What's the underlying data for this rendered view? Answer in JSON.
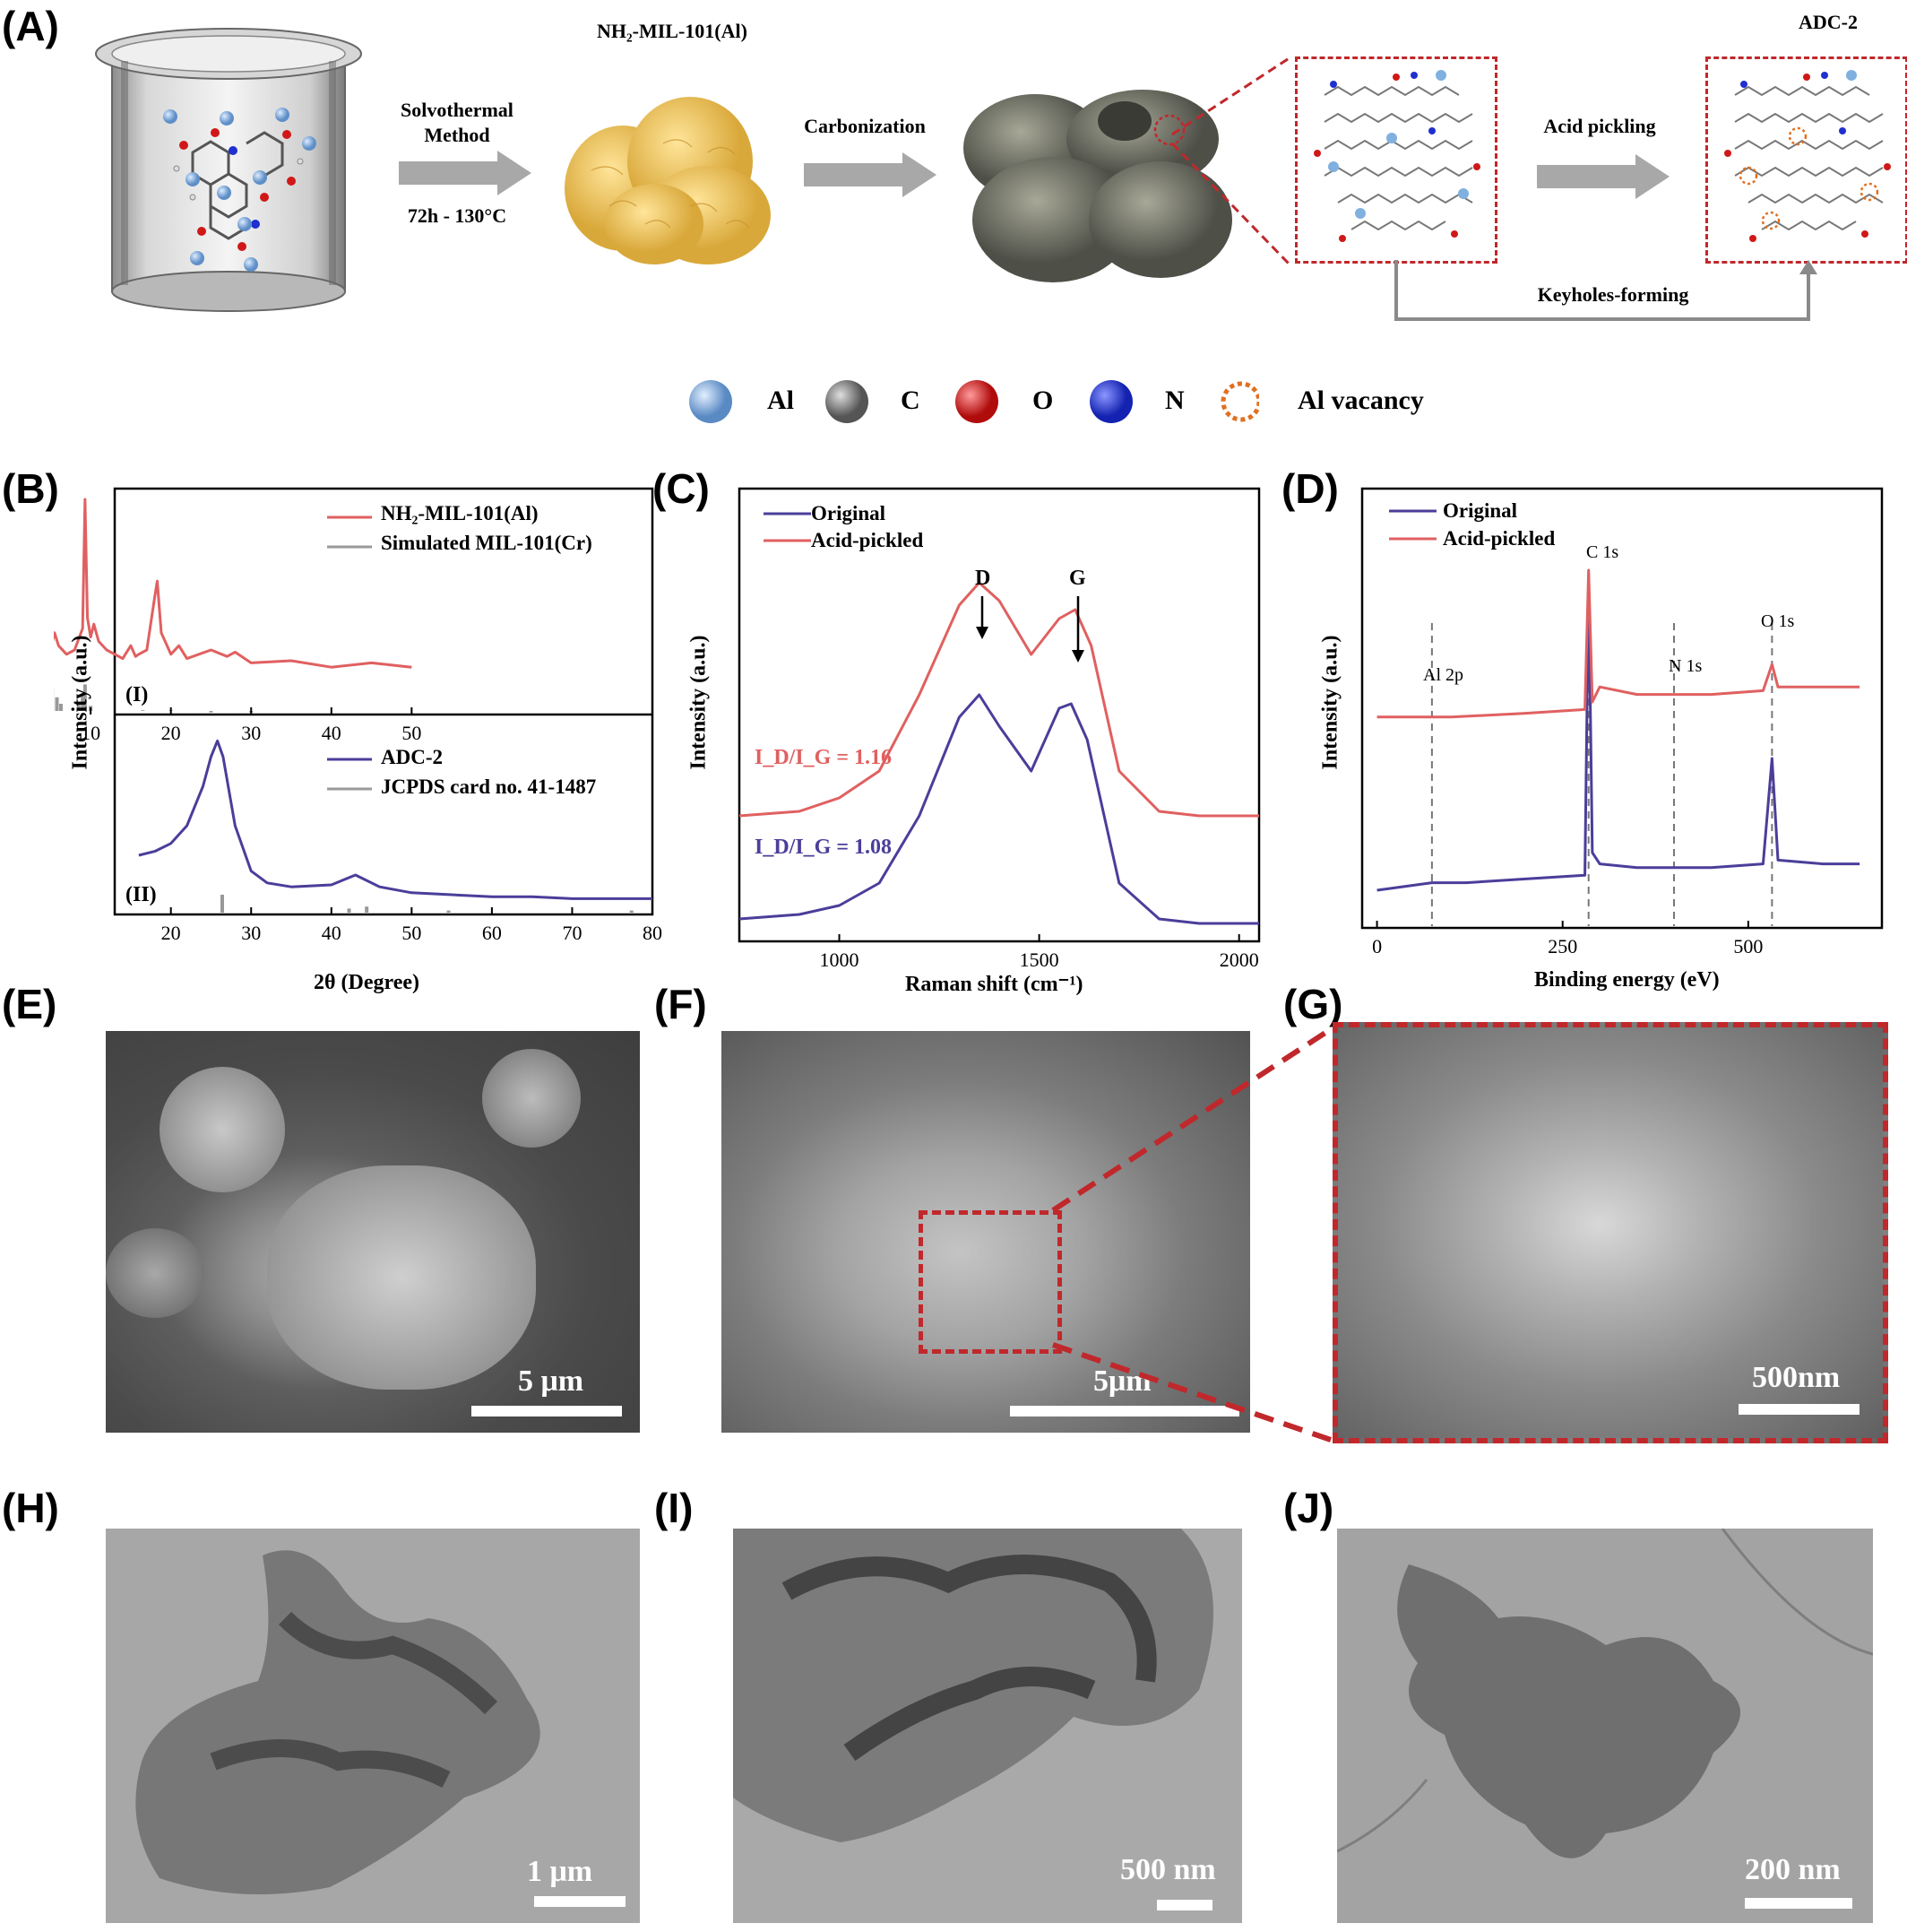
{
  "panels": {
    "A": {
      "label": "(A)",
      "title_mof": "NH₂-MIL-101(Al)",
      "title_adc": "ADC-2",
      "step1": "Solvothermal",
      "step1b": "Method",
      "step1_cond": "72h - 130°C",
      "step2": "Carbonization",
      "step3": "Acid pickling",
      "keyhole": "Keyholes-forming"
    },
    "legend": [
      "Al",
      "C",
      "O",
      "N",
      "Al vacancy"
    ],
    "legend_colors": {
      "Al": "#7fb0e0",
      "C": "#808080",
      "O": "#d01818",
      "N": "#1f2fd0",
      "vacancy": "#e07020"
    },
    "B": {
      "label": "(B)",
      "ylabel": "Intensity (a.u.)",
      "xlabel": "2θ (Degree)",
      "top_legend": [
        "NH₂-MIL-101(Al)",
        "Simulated MIL-101(Cr)"
      ],
      "bottom_legend": [
        "ADC-2",
        "JCPDS card no. 41-1487"
      ],
      "top_tag": "(I)",
      "bottom_tag": "(II)"
    },
    "C": {
      "label": "(C)",
      "ylabel": "Intensity (a.u.)",
      "xlabel": "Raman shift (cm⁻¹)",
      "legend": [
        "Original",
        "Acid-pickled"
      ],
      "peak_d": "D",
      "peak_g": "G",
      "ratio_red": "I_D/I_G = 1.16",
      "ratio_blue": "I_D/I_G = 1.08"
    },
    "D": {
      "label": "(D)",
      "ylabel": "Intensity (a.u.)",
      "xlabel": "Binding energy (eV)",
      "legend": [
        "Original",
        "Acid-pickled"
      ],
      "peaks": [
        "Al 2p",
        "C 1s",
        "N 1s",
        "O 1s"
      ]
    },
    "E": {
      "label": "(E)",
      "scale": "5 μm"
    },
    "F": {
      "label": "(F)",
      "scale": "5μm"
    },
    "G": {
      "label": "(G)",
      "scale": "500nm"
    },
    "H": {
      "label": "(H)",
      "scale": "1 μm"
    },
    "I": {
      "label": "(I)",
      "scale": "500 nm"
    },
    "J": {
      "label": "(J)",
      "scale": "200 nm"
    }
  },
  "chart_data": [
    {
      "type": "line",
      "panel": "B (I)",
      "xlabel": "2θ (Degree)",
      "ylabel": "Intensity (a.u.)",
      "xlim": [
        5,
        50
      ],
      "xticks": [
        10,
        20,
        30,
        40,
        50
      ],
      "series": [
        {
          "name": "NH₂-MIL-101(Al)",
          "color": "#e06060",
          "x": [
            5,
            5.5,
            6,
            7,
            8,
            9,
            9.3,
            9.6,
            10,
            10.4,
            11,
            12,
            14,
            15,
            15.6,
            16,
            17,
            18,
            18.3,
            18.8,
            20,
            21,
            22,
            25,
            27,
            28,
            30,
            35,
            40,
            45,
            50
          ],
          "y": [
            0.3,
            0.38,
            0.32,
            0.28,
            0.3,
            0.4,
            1.0,
            0.45,
            0.36,
            0.42,
            0.34,
            0.3,
            0.26,
            0.32,
            0.27,
            0.28,
            0.3,
            0.55,
            0.62,
            0.38,
            0.28,
            0.32,
            0.26,
            0.3,
            0.27,
            0.29,
            0.24,
            0.25,
            0.22,
            0.24,
            0.22
          ]
        },
        {
          "name": "Simulated MIL-101(Cr)",
          "color": "#999999",
          "x": [
            5.2,
            5.8,
            6.3,
            8.5,
            9.0,
            9.3,
            10.0,
            16.5,
            20,
            25,
            30
          ],
          "y": [
            0.12,
            0.08,
            0.05,
            0.06,
            0.09,
            0.14,
            0.04,
            0.02,
            0.02,
            0.01,
            0.01
          ]
        }
      ]
    },
    {
      "type": "line",
      "panel": "B (II)",
      "xlabel": "2θ (Degree)",
      "ylabel": "Intensity (a.u.)",
      "xlim": [
        13,
        80
      ],
      "xticks": [
        20,
        30,
        40,
        50,
        60,
        70,
        80
      ],
      "series": [
        {
          "name": "ADC-2",
          "color": "#4a3e9a",
          "x": [
            16,
            18,
            20,
            22,
            24,
            25,
            25.8,
            26.5,
            28,
            30,
            32,
            35,
            40,
            43,
            44,
            46,
            50,
            55,
            60,
            65,
            70,
            75,
            80
          ],
          "y": [
            0.3,
            0.32,
            0.36,
            0.45,
            0.65,
            0.8,
            0.88,
            0.8,
            0.45,
            0.22,
            0.16,
            0.14,
            0.15,
            0.2,
            0.18,
            0.14,
            0.11,
            0.1,
            0.09,
            0.09,
            0.08,
            0.08,
            0.08
          ]
        },
        {
          "name": "JCPDS card no. 41-1487",
          "color": "#999999",
          "x": [
            26.4,
            42.2,
            44.4,
            54.6,
            77.4
          ],
          "y": [
            0.1,
            0.03,
            0.04,
            0.02,
            0.02
          ]
        }
      ]
    },
    {
      "type": "line",
      "panel": "C",
      "xlabel": "Raman shift (cm⁻¹)",
      "ylabel": "Intensity (a.u.)",
      "xlim": [
        750,
        2050
      ],
      "xticks": [
        1000,
        1500,
        2000
      ],
      "series": [
        {
          "name": "Original",
          "color": "#4a3e9a",
          "x": [
            750,
            900,
            1000,
            1100,
            1200,
            1300,
            1350,
            1400,
            1480,
            1550,
            1580,
            1620,
            1700,
            1800,
            1900,
            2050
          ],
          "y": [
            0.05,
            0.06,
            0.08,
            0.13,
            0.28,
            0.5,
            0.55,
            0.48,
            0.38,
            0.52,
            0.53,
            0.45,
            0.13,
            0.05,
            0.04,
            0.04
          ]
        },
        {
          "name": "Acid-pickled",
          "color": "#e06060",
          "x": [
            750,
            900,
            1000,
            1100,
            1200,
            1300,
            1350,
            1400,
            1480,
            1550,
            1590,
            1630,
            1700,
            1800,
            1900,
            2050
          ],
          "y": [
            0.28,
            0.29,
            0.32,
            0.38,
            0.55,
            0.75,
            0.8,
            0.76,
            0.64,
            0.72,
            0.74,
            0.66,
            0.38,
            0.29,
            0.28,
            0.28
          ]
        }
      ]
    },
    {
      "type": "line",
      "panel": "D",
      "xlabel": "Binding energy (eV)",
      "ylabel": "Intensity (a.u.)",
      "xlim": [
        -20,
        680
      ],
      "xticks": [
        0,
        250,
        500
      ],
      "series": [
        {
          "name": "Original",
          "color": "#4a3e9a",
          "x": [
            0,
            74,
            120,
            200,
            280,
            285,
            290,
            300,
            350,
            400,
            450,
            520,
            532,
            540,
            600,
            650
          ],
          "y": [
            0.1,
            0.12,
            0.12,
            0.13,
            0.14,
            0.92,
            0.2,
            0.17,
            0.16,
            0.16,
            0.16,
            0.17,
            0.45,
            0.18,
            0.17,
            0.17
          ]
        },
        {
          "name": "Acid-pickled",
          "color": "#e06060",
          "x": [
            0,
            100,
            200,
            280,
            285,
            290,
            300,
            350,
            400,
            450,
            520,
            532,
            540,
            600,
            650
          ],
          "y": [
            0.56,
            0.56,
            0.57,
            0.58,
            0.95,
            0.6,
            0.64,
            0.62,
            0.62,
            0.62,
            0.63,
            0.7,
            0.64,
            0.64,
            0.64
          ]
        }
      ]
    }
  ]
}
